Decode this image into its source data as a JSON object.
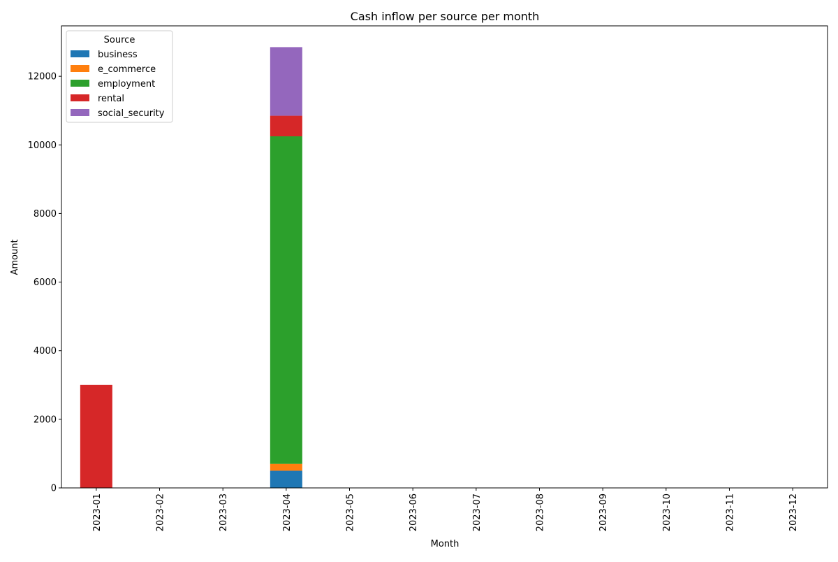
{
  "chart_data": {
    "type": "bar",
    "stacked": true,
    "title": "Cash inflow per source per month",
    "xlabel": "Month",
    "ylabel": "Amount",
    "categories": [
      "2023-01",
      "2023-02",
      "2023-03",
      "2023-04",
      "2023-05",
      "2023-06",
      "2023-07",
      "2023-08",
      "2023-09",
      "2023-10",
      "2023-11",
      "2023-12"
    ],
    "ylim": [
      0,
      13470
    ],
    "yticks": [
      0,
      2000,
      4000,
      6000,
      8000,
      10000,
      12000
    ],
    "grid": false,
    "legend": {
      "title": "Source",
      "placement": "top-left"
    },
    "series": [
      {
        "name": "business",
        "color": "#1f77b4",
        "values": [
          0,
          0,
          0,
          500,
          0,
          0,
          0,
          0,
          0,
          0,
          0,
          0
        ]
      },
      {
        "name": "e_commerce",
        "color": "#ff7f0e",
        "values": [
          0,
          0,
          0,
          200,
          0,
          0,
          0,
          0,
          0,
          0,
          0,
          0
        ]
      },
      {
        "name": "employment",
        "color": "#2ca02c",
        "values": [
          0,
          0,
          0,
          9550,
          0,
          0,
          0,
          0,
          0,
          0,
          0,
          0
        ]
      },
      {
        "name": "rental",
        "color": "#d62728",
        "values": [
          3000,
          0,
          0,
          600,
          0,
          0,
          0,
          0,
          0,
          0,
          0,
          0
        ]
      },
      {
        "name": "social_security",
        "color": "#9467bd",
        "values": [
          0,
          0,
          0,
          2000,
          0,
          0,
          0,
          0,
          0,
          0,
          0,
          0
        ]
      }
    ]
  }
}
